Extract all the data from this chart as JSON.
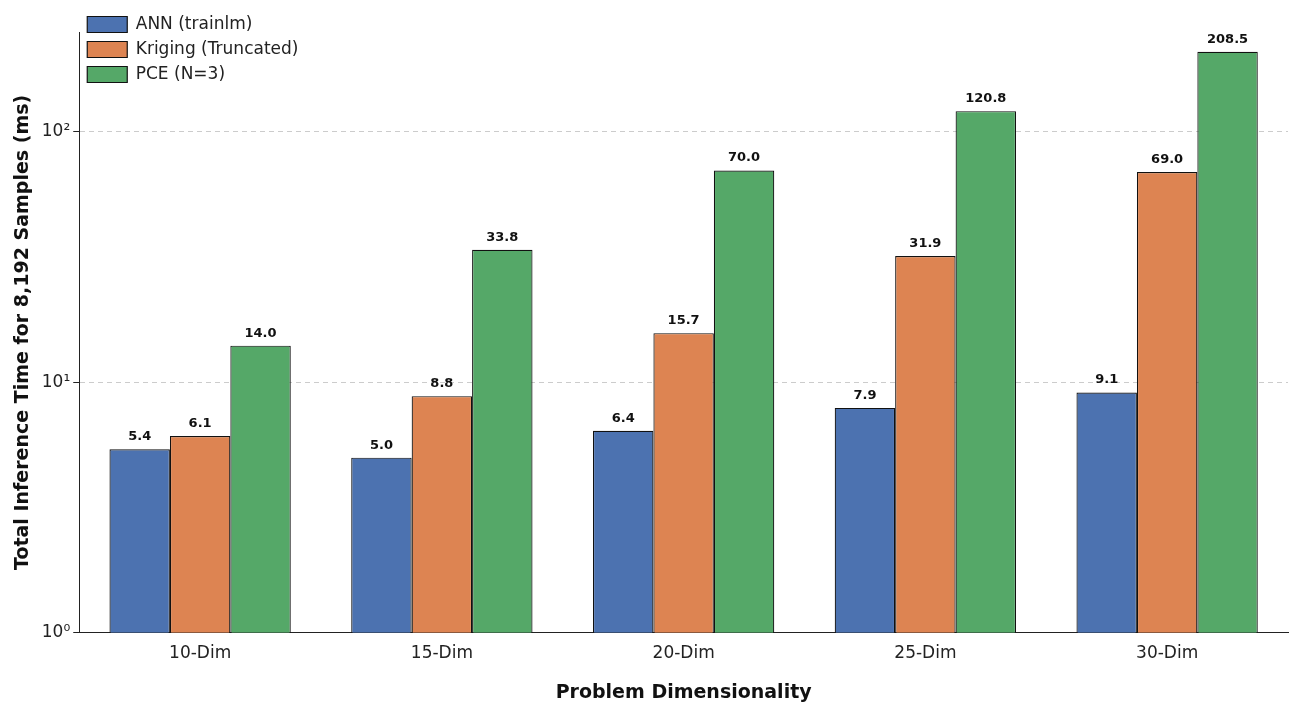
{
  "chart_data": {
    "type": "bar",
    "xlabel": "Problem Dimensionality",
    "ylabel": "Total Inference Time for 8,192 Samples (ms)",
    "categories": [
      "10-Dim",
      "15-Dim",
      "20-Dim",
      "25-Dim",
      "30-Dim"
    ],
    "series": [
      {
        "name": "ANN (trainlm)",
        "color": "#4c72b0",
        "values": [
          5.4,
          5.0,
          6.4,
          7.9,
          9.1
        ],
        "value_labels": [
          "5.4",
          "5.0",
          "6.4",
          "7.9",
          "9.1"
        ]
      },
      {
        "name": "Kriging (Truncated)",
        "color": "#dd8452",
        "values": [
          6.1,
          8.8,
          15.7,
          31.9,
          69.0
        ],
        "value_labels": [
          "6.1",
          "8.8",
          "15.7",
          "31.9",
          "69.0"
        ]
      },
      {
        "name": "PCE (N=3)",
        "color": "#55a868",
        "values": [
          14.0,
          33.8,
          70.0,
          120.8,
          208.5
        ],
        "value_labels": [
          "14.0",
          "33.8",
          "70.0",
          "120.8",
          "208.5"
        ]
      }
    ],
    "log": "y",
    "ylim": [
      1,
      250
    ],
    "yticks": [
      {
        "value": 1,
        "label": "10⁰"
      },
      {
        "value": 10,
        "label": "10¹"
      },
      {
        "value": 100,
        "label": "10²"
      }
    ],
    "grid": "y",
    "legend": "top left"
  }
}
